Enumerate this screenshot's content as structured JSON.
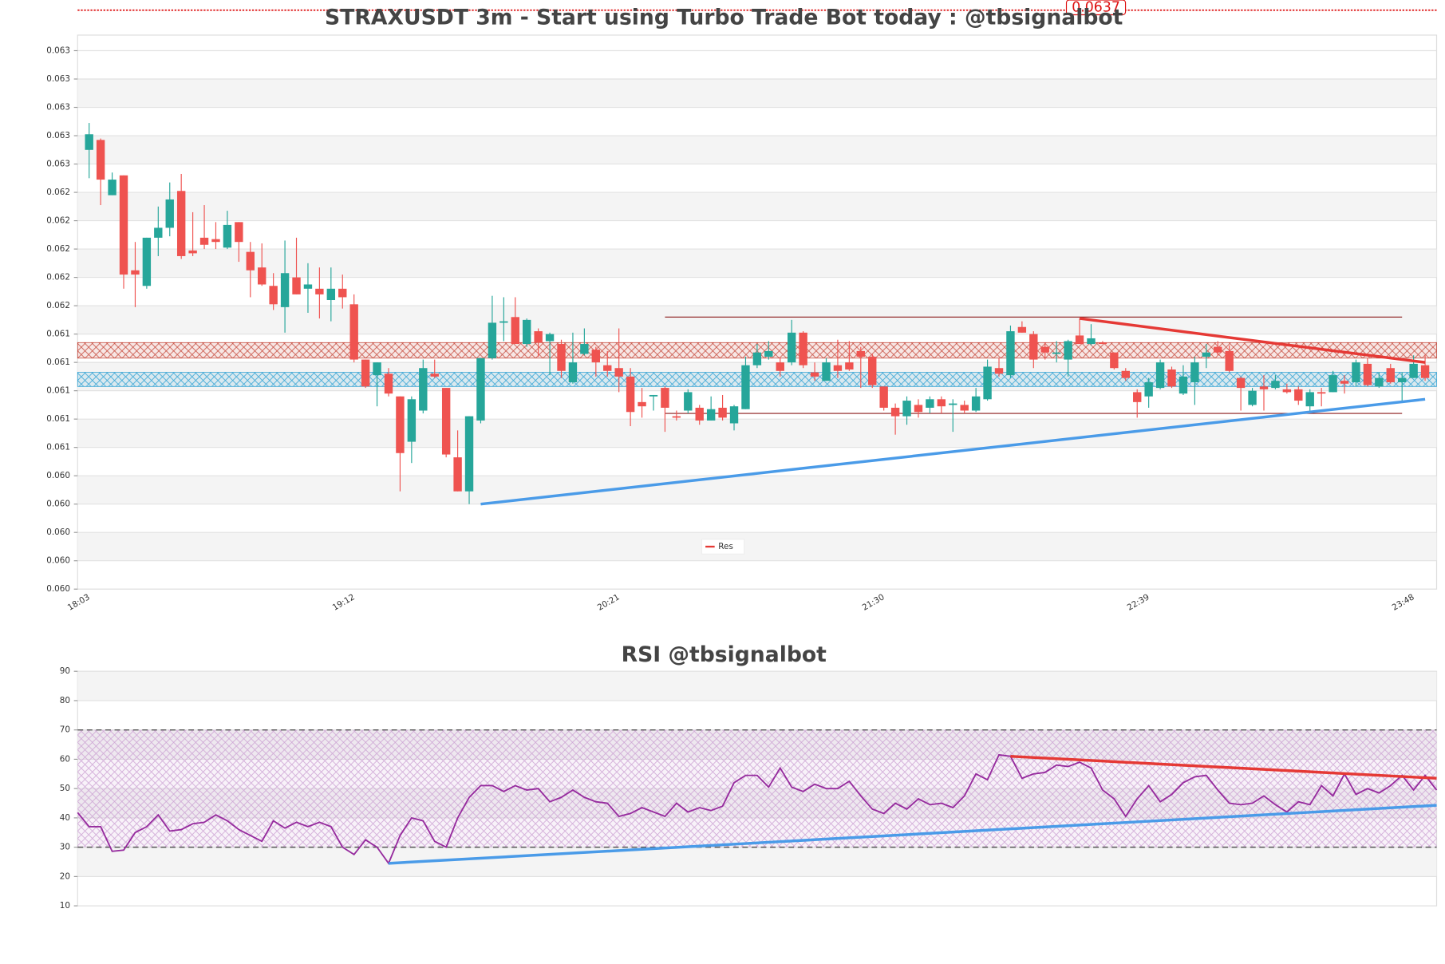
{
  "chart_data": [
    {
      "type": "candlestick",
      "title": "STRAXUSDT 3m - Start using Turbo Trade Bot today : @tbsignalbot",
      "price_label": "0.0637",
      "categories": [
        "18:03",
        null,
        null,
        null,
        null,
        null,
        null,
        null,
        null,
        null,
        null,
        null,
        null,
        null,
        null,
        null,
        null,
        null,
        null,
        null,
        null,
        null,
        null,
        "19:12",
        null,
        null,
        null,
        null,
        null,
        null,
        null,
        null,
        null,
        null,
        null,
        null,
        null,
        null,
        null,
        null,
        null,
        null,
        null,
        null,
        null,
        null,
        "20:21",
        null,
        null,
        null,
        null,
        null,
        null,
        null,
        null,
        null,
        null,
        null,
        null,
        null,
        null,
        null,
        null,
        null,
        null,
        null,
        null,
        null,
        null,
        "21:30",
        null,
        null,
        null,
        null,
        null,
        null,
        null,
        null,
        null,
        null,
        null,
        null,
        null,
        null,
        null,
        null,
        null,
        null,
        null,
        null,
        null,
        null,
        "22:39",
        null,
        null,
        null,
        null,
        null,
        null,
        null,
        null,
        null,
        null,
        null,
        null,
        null,
        null,
        null,
        null,
        null,
        null,
        null,
        null,
        null,
        null,
        "23:48",
        null
      ],
      "open": [
        0.0627,
        0.06277,
        0.06238,
        0.06252,
        0.06185,
        0.06174,
        0.06208,
        0.06215,
        0.06241,
        0.06199,
        0.06208,
        0.06207,
        0.06201,
        0.06219,
        0.06198,
        0.06187,
        0.06174,
        0.06159,
        0.0618,
        0.06172,
        0.06172,
        0.06164,
        0.06172,
        0.06161,
        0.06122,
        0.06111,
        0.06112,
        0.06096,
        0.06064,
        0.06086,
        0.06112,
        0.06102,
        0.06053,
        0.06029,
        0.06079,
        0.06123,
        0.06148,
        0.06152,
        0.06133,
        0.06142,
        0.06135,
        0.06133,
        0.06106,
        0.06126,
        0.06129,
        0.06118,
        0.06116,
        0.0611,
        0.06092,
        0.06096,
        0.06102,
        0.06082,
        0.06086,
        0.06088,
        0.06079,
        0.06088,
        0.06077,
        0.06087,
        0.06118,
        0.06124,
        0.0612,
        0.0612,
        0.06141,
        0.06113,
        0.06107,
        0.06118,
        0.0612,
        0.06128,
        0.06124,
        0.06103,
        0.06088,
        0.06082,
        0.0609,
        0.06088,
        0.06094,
        0.0609,
        0.0609,
        0.06086,
        0.06094,
        0.06116,
        0.06111,
        0.06145,
        0.0614,
        0.06131,
        0.06126,
        0.06122,
        0.06139,
        0.06133,
        0.06134,
        0.06127,
        0.06114,
        0.06099,
        0.06096,
        0.06102,
        0.06115,
        0.06098,
        0.06106,
        0.06124,
        0.06131,
        0.06128,
        0.06109,
        0.0609,
        0.06103,
        0.06102,
        0.06101,
        0.06101,
        0.06089,
        0.06099,
        0.06099,
        0.06107,
        0.06106,
        0.06119,
        0.06103,
        0.06116,
        0.06106,
        0.06109,
        0.06118
      ],
      "high": [
        0.06289,
        0.06278,
        0.06254,
        0.06252,
        0.06205,
        0.06208,
        0.0623,
        0.06247,
        0.06253,
        0.06226,
        0.06231,
        0.06219,
        0.06227,
        0.06219,
        0.06205,
        0.06204,
        0.06183,
        0.06206,
        0.06208,
        0.0619,
        0.06187,
        0.06187,
        0.06182,
        0.06168,
        0.06122,
        0.0612,
        0.06116,
        0.06096,
        0.06096,
        0.06122,
        0.06122,
        0.06102,
        0.06072,
        0.06082,
        0.06123,
        0.06167,
        0.06166,
        0.06166,
        0.06151,
        0.06144,
        0.06141,
        0.06136,
        0.06141,
        0.06144,
        0.06131,
        0.06128,
        0.06144,
        0.06116,
        0.06102,
        0.06097,
        0.06103,
        0.06086,
        0.06101,
        0.0609,
        0.06096,
        0.06097,
        0.0609,
        0.06124,
        0.06133,
        0.06135,
        0.06123,
        0.0615,
        0.06142,
        0.0612,
        0.06123,
        0.06136,
        0.06135,
        0.06131,
        0.06126,
        0.06103,
        0.06091,
        0.06096,
        0.06094,
        0.06096,
        0.06096,
        0.06094,
        0.06093,
        0.06102,
        0.06122,
        0.06123,
        0.06146,
        0.06149,
        0.06142,
        0.06134,
        0.06135,
        0.06136,
        0.06151,
        0.06147,
        0.06135,
        0.06127,
        0.06116,
        0.06101,
        0.06109,
        0.06122,
        0.06117,
        0.06118,
        0.06124,
        0.06133,
        0.06135,
        0.06132,
        0.0611,
        0.06102,
        0.06111,
        0.06111,
        0.06105,
        0.06103,
        0.06101,
        0.06102,
        0.06114,
        0.06111,
        0.06122,
        0.06123,
        0.06113,
        0.06119,
        0.06113,
        0.06125,
        0.06125
      ],
      "low": [
        0.0625,
        0.06231,
        0.06238,
        0.06172,
        0.06159,
        0.06172,
        0.06195,
        0.06209,
        0.06193,
        0.06195,
        0.062,
        0.062,
        0.062,
        0.06191,
        0.06166,
        0.06174,
        0.06157,
        0.06141,
        0.06168,
        0.06155,
        0.06151,
        0.06149,
        0.06158,
        0.0612,
        0.06102,
        0.06089,
        0.06096,
        0.06029,
        0.06049,
        0.06084,
        0.06109,
        0.06053,
        0.06029,
        0.0602,
        0.06077,
        0.06122,
        0.06135,
        0.06133,
        0.06131,
        0.06124,
        0.06111,
        0.06109,
        0.06105,
        0.06125,
        0.0611,
        0.0611,
        0.06099,
        0.06075,
        0.06081,
        0.06086,
        0.06071,
        0.06079,
        0.06084,
        0.06076,
        0.06079,
        0.06079,
        0.06072,
        0.06087,
        0.06116,
        0.06122,
        0.0611,
        0.06118,
        0.06116,
        0.06107,
        0.06107,
        0.06109,
        0.06114,
        0.06102,
        0.06102,
        0.06086,
        0.06069,
        0.06076,
        0.06081,
        0.06084,
        0.06084,
        0.06071,
        0.06084,
        0.06085,
        0.06093,
        0.0611,
        0.06109,
        0.06141,
        0.06116,
        0.06122,
        0.0612,
        0.0611,
        0.06133,
        0.06132,
        0.06133,
        0.06115,
        0.06107,
        0.06081,
        0.06088,
        0.06101,
        0.06102,
        0.06097,
        0.0609,
        0.06116,
        0.06125,
        0.06113,
        0.06086,
        0.06089,
        0.06086,
        0.06101,
        0.06098,
        0.0609,
        0.06086,
        0.06089,
        0.06099,
        0.06098,
        0.06103,
        0.06103,
        0.06102,
        0.06105,
        0.06092,
        0.06109,
        0.06107
      ],
      "close": [
        0.06281,
        0.06249,
        0.06249,
        0.06182,
        0.06182,
        0.06208,
        0.06215,
        0.06235,
        0.06195,
        0.06197,
        0.06203,
        0.06205,
        0.06217,
        0.06205,
        0.06185,
        0.06175,
        0.06161,
        0.06183,
        0.06168,
        0.06175,
        0.06168,
        0.06172,
        0.06166,
        0.06122,
        0.06103,
        0.0612,
        0.06098,
        0.06056,
        0.06094,
        0.06116,
        0.0611,
        0.06055,
        0.06029,
        0.06082,
        0.06123,
        0.06148,
        0.06149,
        0.06133,
        0.0615,
        0.06134,
        0.0614,
        0.06114,
        0.0612,
        0.06133,
        0.0612,
        0.06114,
        0.0611,
        0.06085,
        0.06089,
        0.06097,
        0.06088,
        0.06081,
        0.06099,
        0.06079,
        0.06087,
        0.06081,
        0.06089,
        0.06118,
        0.06127,
        0.06128,
        0.06114,
        0.06141,
        0.06118,
        0.0611,
        0.0612,
        0.06114,
        0.06115,
        0.06124,
        0.06104,
        0.06088,
        0.06082,
        0.06093,
        0.06085,
        0.06094,
        0.06089,
        0.06091,
        0.06086,
        0.06096,
        0.06117,
        0.06112,
        0.06142,
        0.06141,
        0.06122,
        0.06127,
        0.06127,
        0.06135,
        0.06133,
        0.06137,
        0.06133,
        0.06116,
        0.06109,
        0.06092,
        0.06106,
        0.0612,
        0.06103,
        0.0611,
        0.0612,
        0.06127,
        0.06127,
        0.06114,
        0.06102,
        0.061,
        0.06101,
        0.06107,
        0.06099,
        0.06093,
        0.06099,
        0.06098,
        0.06111,
        0.06105,
        0.0612,
        0.06104,
        0.06109,
        0.06106,
        0.06109,
        0.06119,
        0.06109
      ],
      "up_color": "#26a69a",
      "down_color": "#ef5350",
      "ylim": [
        0.0596,
        0.06351
      ],
      "yticks": [
        {
          "value": 0.0596,
          "label": "0.060"
        },
        {
          "value": 0.0598,
          "label": "0.060"
        },
        {
          "value": 0.06,
          "label": "0.060"
        },
        {
          "value": 0.0602,
          "label": "0.060"
        },
        {
          "value": 0.0604,
          "label": "0.060"
        },
        {
          "value": 0.0606,
          "label": "0.061"
        },
        {
          "value": 0.0608,
          "label": "0.061"
        },
        {
          "value": 0.061,
          "label": "0.061"
        },
        {
          "value": 0.0612,
          "label": "0.061"
        },
        {
          "value": 0.0614,
          "label": "0.061"
        },
        {
          "value": 0.0616,
          "label": "0.062"
        },
        {
          "value": 0.0618,
          "label": "0.062"
        },
        {
          "value": 0.062,
          "label": "0.062"
        },
        {
          "value": 0.0622,
          "label": "0.062"
        },
        {
          "value": 0.0624,
          "label": "0.062"
        },
        {
          "value": 0.0626,
          "label": "0.063"
        },
        {
          "value": 0.0628,
          "label": "0.063"
        },
        {
          "value": 0.063,
          "label": "0.063"
        },
        {
          "value": 0.0632,
          "label": "0.063"
        },
        {
          "value": 0.0634,
          "label": "0.063"
        }
      ],
      "zones": [
        {
          "color": "#c0392b",
          "range": [
            0.06123,
            0.06134
          ]
        },
        {
          "color": "#1f9bd1",
          "range": [
            0.06103,
            0.06113
          ]
        }
      ],
      "levels": [
        {
          "color": "#8b1a1a",
          "x": [
            50,
            114
          ],
          "value": 0.06152
        },
        {
          "color": "#8b1a1a",
          "x": [
            50,
            114
          ],
          "value": 0.06084
        }
      ],
      "trendlines": [
        {
          "name": "Res",
          "color": "#e53935",
          "x": [
            86,
            116
          ],
          "values": [
            0.06151,
            0.0612
          ]
        },
        {
          "color": "#4a9be8",
          "x": [
            34,
            116
          ],
          "values": [
            0.0602,
            0.06094
          ]
        }
      ],
      "legend": "lower center",
      "grid": true
    },
    {
      "type": "line",
      "title": "RSI @tbsignalbot",
      "series": [
        {
          "color": "#962b9e",
          "values": [
            41.8,
            37,
            37,
            28.6,
            29,
            35,
            37,
            41,
            35.5,
            36,
            38,
            38.5,
            41,
            39,
            36,
            34,
            32,
            39,
            36.5,
            38.5,
            37,
            38.5,
            37,
            30,
            27.5,
            32.5,
            30,
            24.5,
            34,
            40,
            39,
            32,
            30,
            40,
            47,
            51,
            51,
            49,
            51,
            49.5,
            50,
            45.5,
            47,
            49.5,
            47,
            45.5,
            45,
            40.5,
            41.5,
            43.5,
            42,
            40.5,
            45,
            42,
            43.5,
            42.5,
            44,
            52,
            54.5,
            54.5,
            50.5,
            57,
            50.5,
            49,
            51.5,
            50,
            50,
            52.5,
            47.5,
            43,
            41.5,
            45,
            43,
            46.5,
            44.5,
            45,
            43.5,
            47.5,
            55,
            53,
            61.5,
            61,
            53.5,
            55,
            55.5,
            58,
            57.5,
            59,
            57,
            49.5,
            46.5,
            40.5,
            46.5,
            51,
            45.5,
            48,
            52,
            54,
            54.5,
            49.5,
            45,
            44.5,
            45,
            47.5,
            44.5,
            42,
            45.5,
            44.5,
            51,
            47.5,
            55,
            48,
            50,
            48.5,
            51,
            54.5,
            49.5,
            54.5,
            49.5
          ]
        }
      ],
      "ylim": [
        10,
        90
      ],
      "yticks": [
        10,
        20,
        30,
        40,
        50,
        60,
        70,
        80,
        90
      ],
      "hlines": [
        30,
        70
      ],
      "trendlines": [
        {
          "color": "#e53935",
          "x": [
            81,
            118
          ],
          "values": [
            61,
            53.5
          ]
        },
        {
          "color": "#4a9be8",
          "x": [
            27,
            118
          ],
          "values": [
            24.5,
            44.3
          ]
        }
      ],
      "grid": true
    }
  ]
}
